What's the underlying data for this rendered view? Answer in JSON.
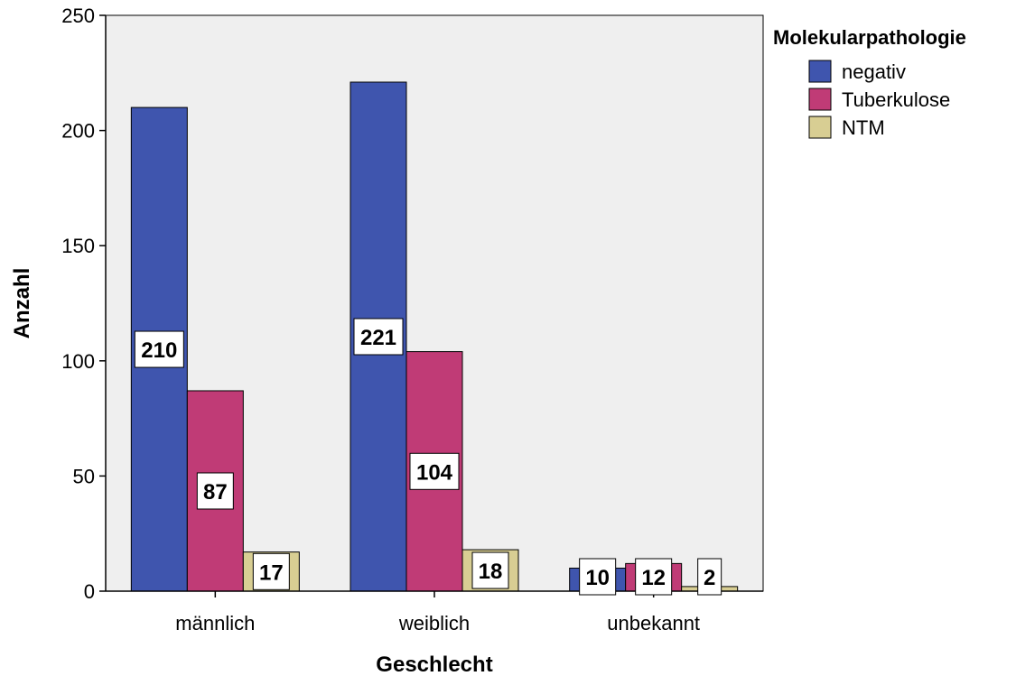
{
  "chart_data": {
    "type": "bar",
    "xlabel": "Geschlecht",
    "ylabel": "Anzahl",
    "ylim": [
      0,
      250
    ],
    "yticks": [
      "0",
      "50",
      "100",
      "150",
      "200",
      "250"
    ],
    "grid": false,
    "legend_position": "top-right",
    "legend_title": "Molekularpathologie",
    "categories": [
      "männlich",
      "weiblich",
      "unbekannt"
    ],
    "series": [
      {
        "name": "negativ",
        "color": "#3F55AE",
        "values": [
          210,
          221,
          10
        ]
      },
      {
        "name": "Tuberkulose",
        "color": "#C03B76",
        "values": [
          87,
          104,
          12
        ]
      },
      {
        "name": "NTM",
        "color": "#D8CE93",
        "values": [
          17,
          18,
          2
        ]
      }
    ]
  },
  "colors": {
    "plot_background": "#EFEFEF"
  }
}
